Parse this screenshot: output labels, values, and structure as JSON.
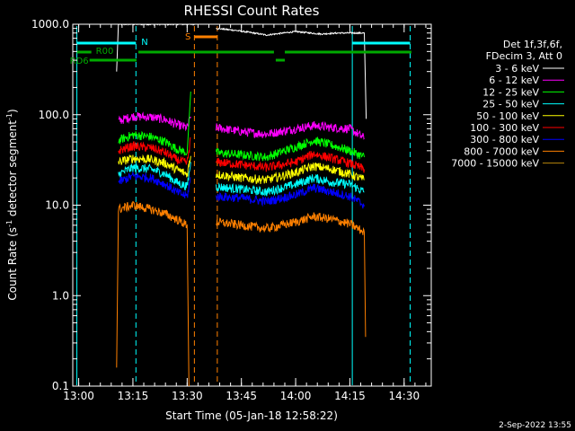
{
  "chart_data": {
    "type": "line",
    "title": "RHESSI Count Rates",
    "xlabel": "Start Time (05-Jan-18 12:58:22)",
    "ylabel": "Count Rate (s⁻¹ detector segment⁻¹)",
    "ylabel_main": "Count Rate (s",
    "ylabel_mid": " detector segment",
    "ylabel_end": ")",
    "ylabel_sup": "-1",
    "xlim": [
      "12:58:22",
      "14:37:30"
    ],
    "ylim": [
      0.1,
      1000
    ],
    "yscale": "log",
    "x_ticks": [
      "13:00",
      "13:15",
      "13:30",
      "13:45",
      "14:00",
      "14:15",
      "14:30"
    ],
    "y_ticks": [
      "0.1",
      "1.0",
      "10.0",
      "100.0",
      "1000.0"
    ],
    "legend_title": [
      "Det 1f,3f,6f,",
      "FDecim 3, Att 0"
    ],
    "legend_placement": "right",
    "footer_date": "2-Sep-2022 13:55",
    "series": [
      {
        "name": "3 - 6 keV",
        "color": "#ffffff",
        "segments": [
          [
            [
              "13:10:30",
              300
            ],
            [
              "13:11:00",
              1000
            ],
            [
              "13:32:00",
              1000
            ]
          ],
          [
            [
              "13:38:00",
              900
            ],
            [
              "13:44:00",
              850
            ],
            [
              "13:52:00",
              760
            ],
            [
              "14:00:00",
              830
            ],
            [
              "14:07:00",
              780
            ],
            [
              "14:12:00",
              800
            ],
            [
              "14:19:00",
              800
            ],
            [
              "14:19:30",
              90
            ]
          ]
        ]
      },
      {
        "name": "6 - 12 keV",
        "color": "#ff00ff",
        "segments": [
          [
            [
              "13:11:00",
              85
            ],
            [
              "13:15:00",
              96
            ],
            [
              "13:20:00",
              94
            ],
            [
              "13:24:00",
              88
            ],
            [
              "13:27:00",
              78
            ],
            [
              "13:30:00",
              72
            ],
            [
              "13:31:00",
              95
            ]
          ],
          [
            [
              "13:38:00",
              72
            ],
            [
              "13:45:00",
              65
            ],
            [
              "13:52:00",
              61
            ],
            [
              "14:00:00",
              70
            ],
            [
              "14:05:00",
              76
            ],
            [
              "14:10:00",
              72
            ],
            [
              "14:15:00",
              70
            ],
            [
              "14:19:00",
              55
            ]
          ]
        ]
      },
      {
        "name": "12 - 25 keV",
        "color": "#00ff00",
        "segments": [
          [
            [
              "13:11:00",
              52
            ],
            [
              "13:15:00",
              60
            ],
            [
              "13:20:00",
              57
            ],
            [
              "13:24:00",
              50
            ],
            [
              "13:27:00",
              42
            ],
            [
              "13:30:00",
              38
            ],
            [
              "13:31:00",
              180
            ]
          ],
          [
            [
              "13:38:00",
              38
            ],
            [
              "13:45:00",
              36
            ],
            [
              "13:52:00",
              34
            ],
            [
              "14:00:00",
              44
            ],
            [
              "14:05:00",
              52
            ],
            [
              "14:10:00",
              46
            ],
            [
              "14:15:00",
              40
            ],
            [
              "14:19:00",
              34
            ]
          ]
        ]
      },
      {
        "name": "25 - 50 keV",
        "color": "#00ffff",
        "segments": [
          [
            [
              "13:11:00",
              22
            ],
            [
              "13:15:00",
              26
            ],
            [
              "13:20:00",
              25
            ],
            [
              "13:24:00",
              22
            ],
            [
              "13:27:00",
              18
            ],
            [
              "13:30:00",
              16
            ],
            [
              "13:31:00",
              30
            ]
          ],
          [
            [
              "13:38:00",
              16
            ],
            [
              "13:45:00",
              15
            ],
            [
              "13:52:00",
              14
            ],
            [
              "14:00:00",
              17
            ],
            [
              "14:05:00",
              20
            ],
            [
              "14:10:00",
              18
            ],
            [
              "14:15:00",
              17
            ],
            [
              "14:19:00",
              14
            ]
          ]
        ]
      },
      {
        "name": "50 - 100 keV",
        "color": "#ffff00",
        "segments": [
          [
            [
              "13:11:00",
              30
            ],
            [
              "13:15:00",
              33
            ],
            [
              "13:20:00",
              32
            ],
            [
              "13:24:00",
              29
            ],
            [
              "13:27:00",
              25
            ],
            [
              "13:30:00",
              22
            ],
            [
              "13:31:00",
              35
            ]
          ],
          [
            [
              "13:38:00",
              22
            ],
            [
              "13:45:00",
              20
            ],
            [
              "13:52:00",
              19
            ],
            [
              "14:00:00",
              23
            ],
            [
              "14:05:00",
              27
            ],
            [
              "14:10:00",
              25
            ],
            [
              "14:15:00",
              22
            ],
            [
              "14:19:00",
              19
            ]
          ]
        ]
      },
      {
        "name": "100 - 300 keV",
        "color": "#ff0000",
        "segments": [
          [
            [
              "13:11:00",
              40
            ],
            [
              "13:15:00",
              45
            ],
            [
              "13:20:00",
              43
            ],
            [
              "13:24:00",
              38
            ],
            [
              "13:27:00",
              32
            ],
            [
              "13:30:00",
              29
            ],
            [
              "13:31:00",
              55
            ]
          ],
          [
            [
              "13:38:00",
              30
            ],
            [
              "13:45:00",
              28
            ],
            [
              "13:52:00",
              26
            ],
            [
              "14:00:00",
              30
            ],
            [
              "14:05:00",
              37
            ],
            [
              "14:10:00",
              33
            ],
            [
              "14:15:00",
              29
            ],
            [
              "14:19:00",
              25
            ]
          ]
        ]
      },
      {
        "name": "300 - 800 keV",
        "color": "#0000ff",
        "segments": [
          [
            [
              "13:11:00",
              18
            ],
            [
              "13:15:00",
              21
            ],
            [
              "13:20:00",
              20
            ],
            [
              "13:24:00",
              17
            ],
            [
              "13:27:00",
              14
            ],
            [
              "13:30:00",
              12.5
            ],
            [
              "13:31:00",
              20
            ]
          ],
          [
            [
              "13:38:00",
              12.5
            ],
            [
              "13:45:00",
              12
            ],
            [
              "13:52:00",
              11
            ],
            [
              "14:00:00",
              13
            ],
            [
              "14:05:00",
              15.5
            ],
            [
              "14:10:00",
              14
            ],
            [
              "14:15:00",
              12.5
            ],
            [
              "14:19:00",
              10
            ]
          ]
        ]
      },
      {
        "name": "800 - 7000 keV",
        "color": "#ff8000",
        "segments": [
          [
            [
              "13:10:30",
              0.16
            ],
            [
              "13:11:00",
              9
            ],
            [
              "13:15:00",
              10
            ],
            [
              "13:20:00",
              9
            ],
            [
              "13:24:00",
              8
            ],
            [
              "13:27:00",
              7
            ],
            [
              "13:30:00",
              6
            ],
            [
              "13:30:30",
              0.1
            ]
          ],
          [
            [
              "13:38:00",
              6.5
            ],
            [
              "13:45:00",
              6
            ],
            [
              "13:52:00",
              5.5
            ],
            [
              "14:00:00",
              6.5
            ],
            [
              "14:05:00",
              7.5
            ],
            [
              "14:10:00",
              7
            ],
            [
              "14:15:00",
              6.2
            ],
            [
              "14:19:00",
              5
            ],
            [
              "14:19:20",
              0.35
            ]
          ]
        ]
      },
      {
        "name": "7000 - 15000 keV",
        "color": "#b8860b",
        "segments": []
      }
    ],
    "annotations": [
      {
        "label": "R00",
        "color": "#00aa00",
        "type": "bar",
        "y": "1st",
        "x_range": [
          [
            "12:59:30",
            "13:03:30"
          ],
          [
            "13:16:30",
            "13:54:00"
          ],
          [
            "13:57:00",
            "14:32:00"
          ]
        ]
      },
      {
        "label": "RD6",
        "color": "#00aa00",
        "type": "bar",
        "y": "2nd",
        "x_range": [
          [
            "13:03:00",
            "13:16:00"
          ],
          [
            "13:54:30",
            "13:57:00"
          ]
        ]
      },
      {
        "label": "N",
        "color": "#00ffff",
        "type": "bar",
        "x_range": [
          [
            "12:59:30",
            "13:15:50"
          ],
          [
            "14:15:40",
            "14:31:40"
          ]
        ]
      },
      {
        "label": "S",
        "color": "#ff8000",
        "type": "bar",
        "x_range": [
          [
            "13:32:00",
            "13:38:20"
          ]
        ]
      }
    ],
    "grid": false
  }
}
